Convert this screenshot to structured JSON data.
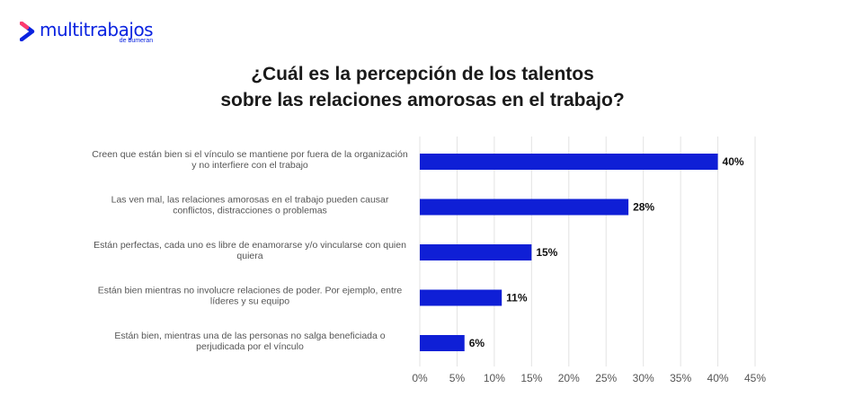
{
  "brand": {
    "name": "multitrabajos",
    "sub": "de bumeran",
    "color": "#0a23e0",
    "icon": "multitrabajos-logo-mark"
  },
  "title_line1": "¿Cuál es la percepción de los talentos",
  "title_line2": "sobre las relaciones amorosas en el trabajo?",
  "chart_data": {
    "type": "bar",
    "orientation": "horizontal",
    "categories": [
      [
        "Creen que están bien si el vínculo se mantiene por fuera de la organización",
        "y no interfiere con el trabajo"
      ],
      [
        "Las ven mal, las relaciones amorosas en el trabajo pueden causar",
        "conflictos, distracciones o problemas"
      ],
      [
        "Están perfectas, cada uno es libre de enamorarse y/o vincularse con quien",
        "quiera"
      ],
      [
        "Están bien mientras no involucre relaciones de poder. Por ejemplo, entre",
        "líderes y su equipo"
      ],
      [
        "Están bien, mientras una de las personas no salga beneficiada o",
        "perjudicada por el vínculo"
      ]
    ],
    "values": [
      40,
      28,
      15,
      11,
      6
    ],
    "data_labels": [
      "40%",
      "28%",
      "15%",
      "11%",
      "6%"
    ],
    "xlim": [
      0,
      45
    ],
    "xticks": [
      0,
      5,
      10,
      15,
      20,
      25,
      30,
      35,
      40,
      45
    ],
    "xtick_labels": [
      "0%",
      "5%",
      "10%",
      "15%",
      "20%",
      "25%",
      "30%",
      "35%",
      "40%",
      "45%"
    ],
    "grid": "vertical",
    "bar_color": "#0f1fd6",
    "grid_color": "#e3e3e3"
  }
}
